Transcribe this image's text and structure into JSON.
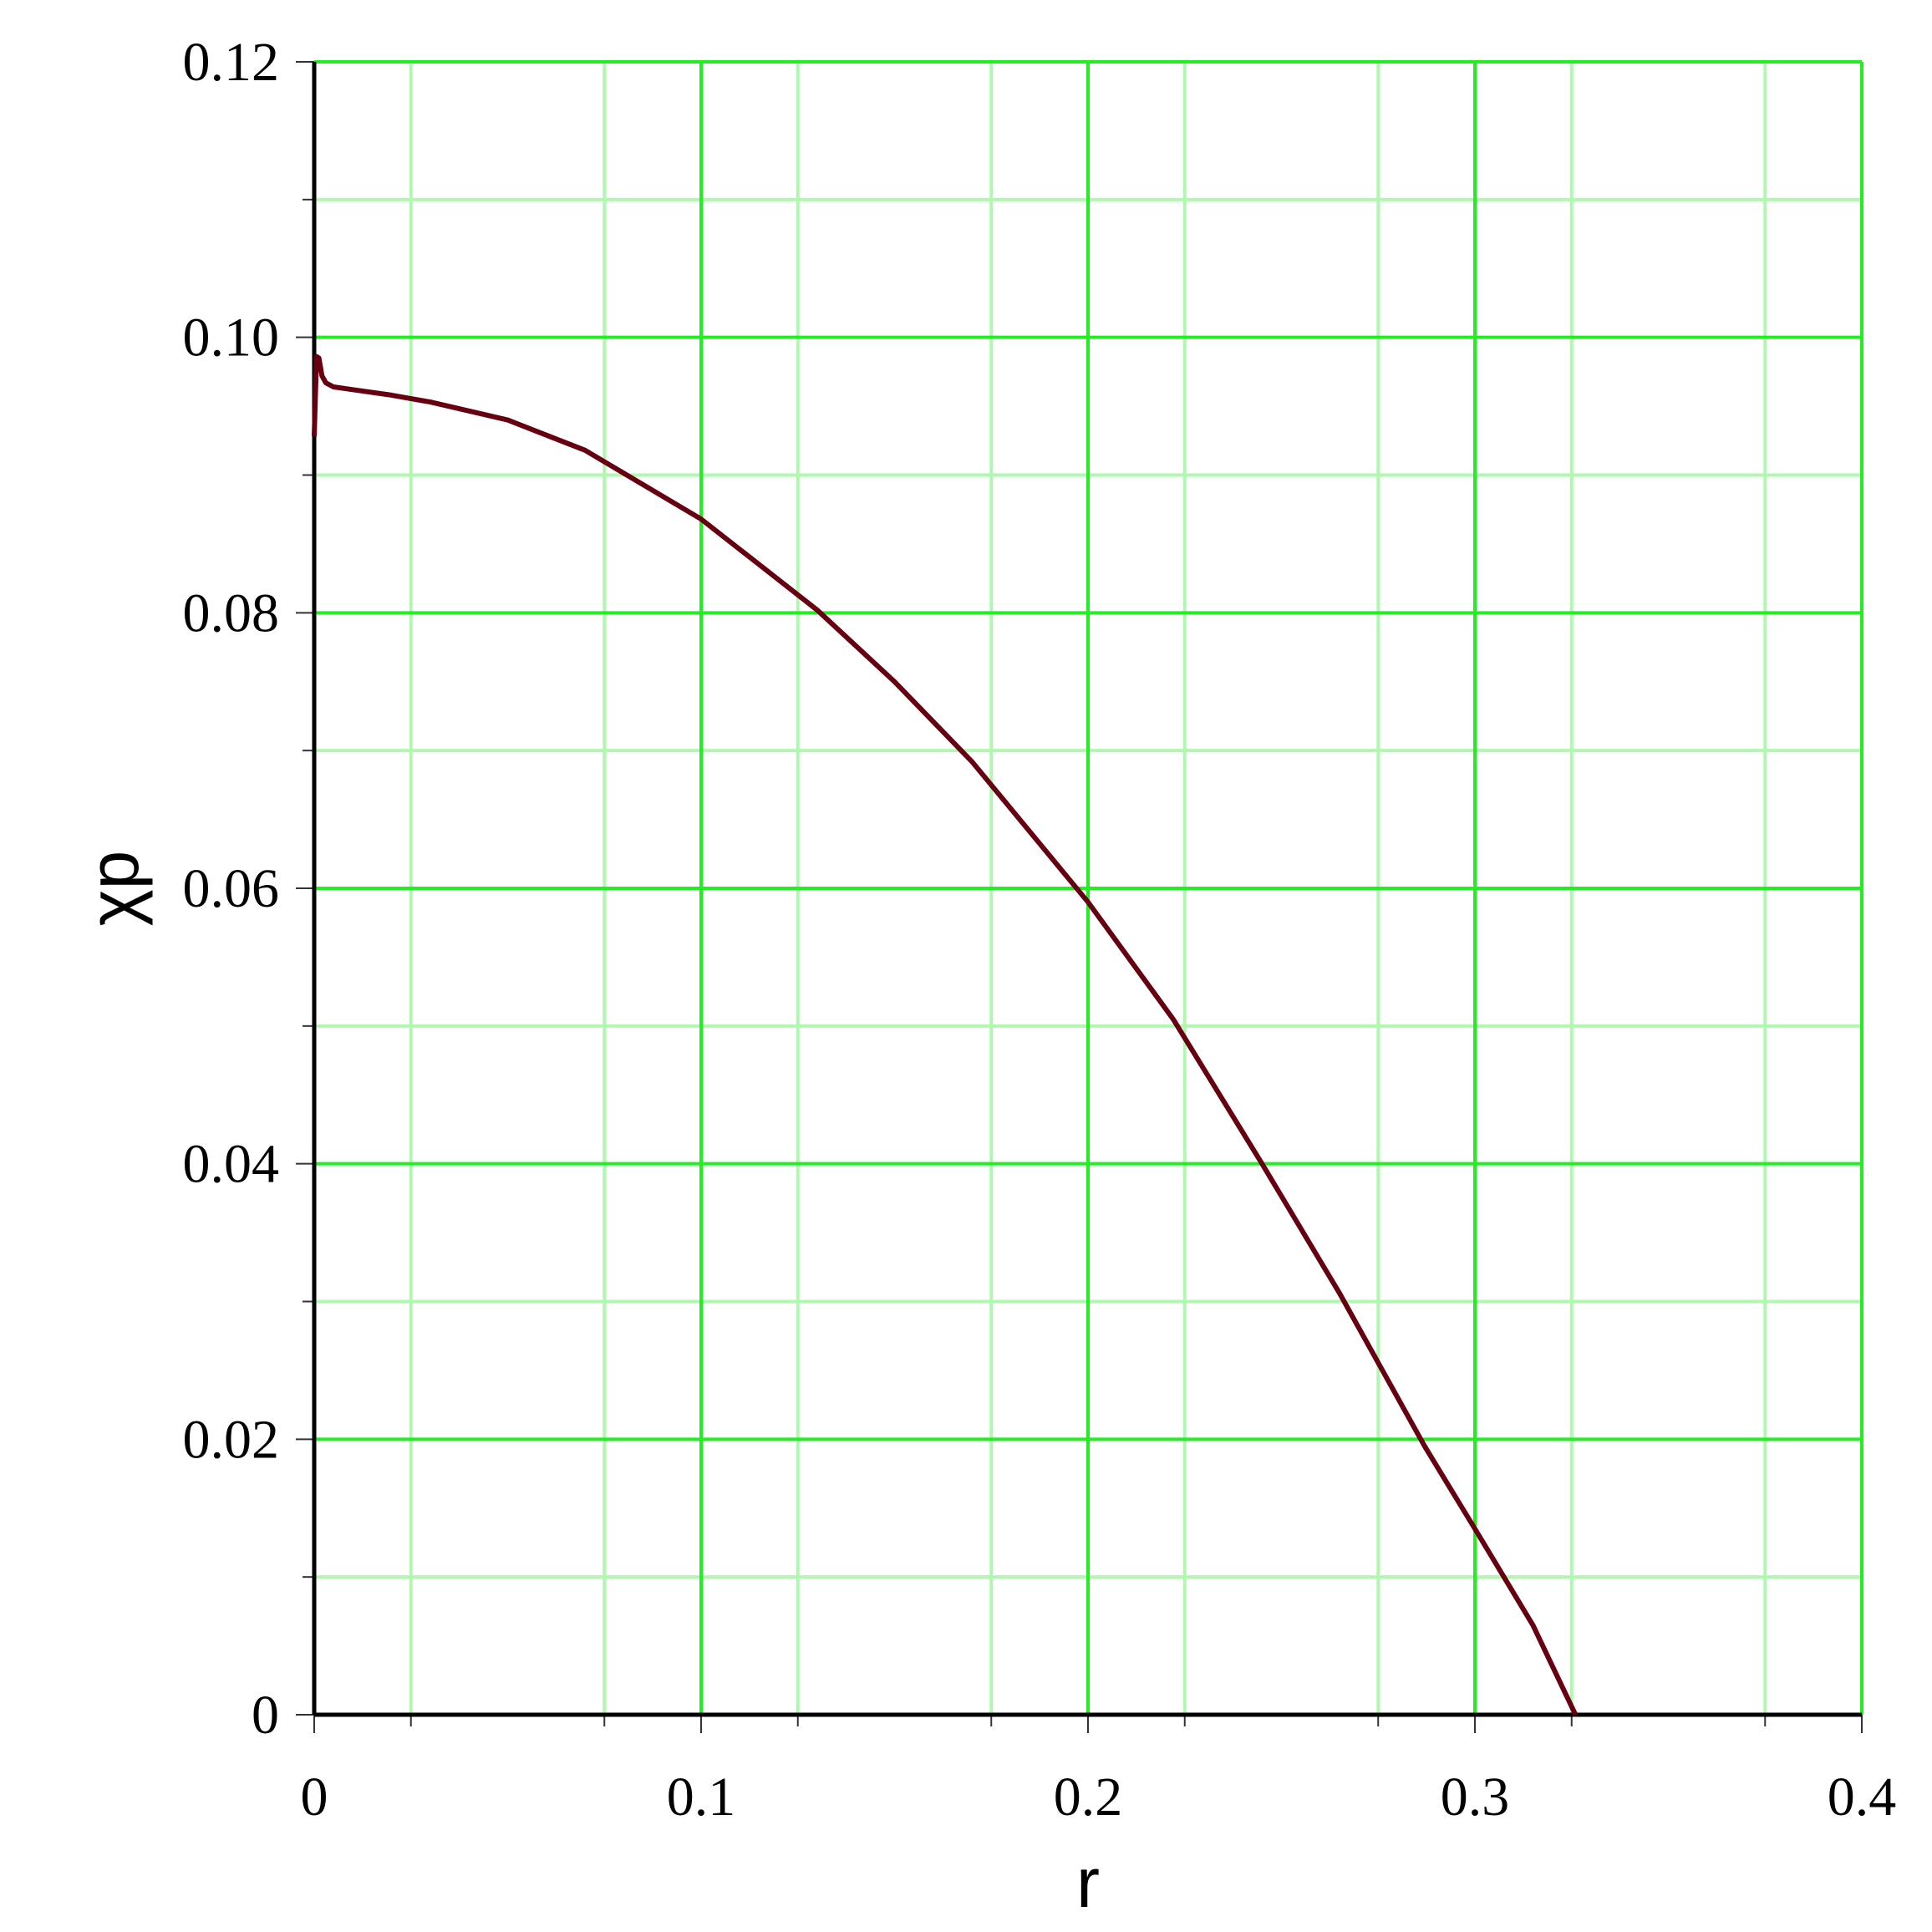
{
  "chart_data": {
    "type": "line",
    "xlabel": "r",
    "ylabel": "χp",
    "xlim": [
      0,
      0.4
    ],
    "ylim": [
      0,
      0.12
    ],
    "x_ticks": [
      "0",
      "0.1",
      "0.2",
      "0.3",
      "0.4"
    ],
    "x_tick_values": [
      0,
      0.1,
      0.2,
      0.3,
      0.4
    ],
    "y_ticks": [
      "0",
      "0.02",
      "0.04",
      "0.06",
      "0.08",
      "0.10",
      "0.12"
    ],
    "y_tick_values": [
      0,
      0.02,
      0.04,
      0.06,
      0.08,
      0.1,
      0.12
    ],
    "grid": true,
    "colors": {
      "major_grid": "#22ee22",
      "minor_grid": "#b0f8b0",
      "line": "#660011",
      "axes": "#000000"
    },
    "series": [
      {
        "x": [
          0,
          0.0006,
          0.0012,
          0.002,
          0.003,
          0.005,
          0.01,
          0.02,
          0.03,
          0.05,
          0.07,
          0.1,
          0.13,
          0.15,
          0.17,
          0.2,
          0.222,
          0.245,
          0.265,
          0.287,
          0.3,
          0.315,
          0.326
        ],
        "y": [
          0.0928,
          0.0986,
          0.0985,
          0.0972,
          0.0967,
          0.0964,
          0.0962,
          0.0958,
          0.0953,
          0.094,
          0.0918,
          0.0868,
          0.0802,
          0.075,
          0.0692,
          0.059,
          0.0505,
          0.04,
          0.0306,
          0.0195,
          0.0135,
          0.0065,
          0.0
        ]
      }
    ]
  }
}
